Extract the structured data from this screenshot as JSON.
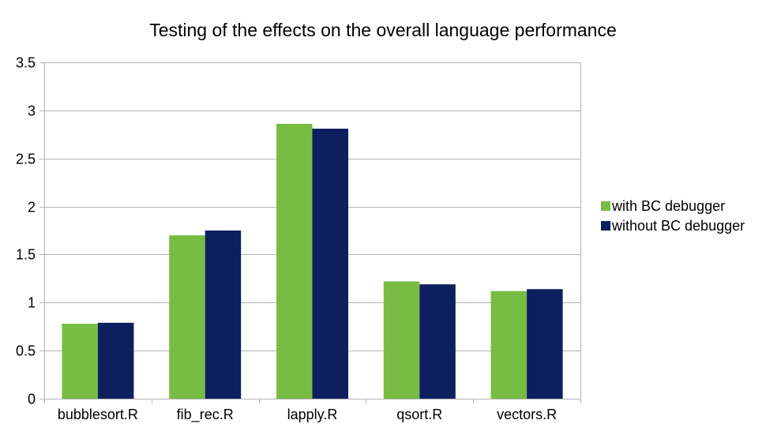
{
  "chart_data": {
    "type": "bar",
    "title": "Testing of the effects on the overall language performance",
    "xlabel": "",
    "ylabel": "",
    "categories": [
      "bubblesort.R",
      "fib_rec.R",
      "lapply.R",
      "qsort.R",
      "vectors.R"
    ],
    "series": [
      {
        "name": "with BC debugger",
        "color": "#77bc43",
        "values": [
          0.78,
          1.7,
          2.86,
          1.22,
          1.12
        ]
      },
      {
        "name": "without BC debugger",
        "color": "#0e1f5f",
        "values": [
          0.79,
          1.75,
          2.81,
          1.19,
          1.14
        ]
      }
    ],
    "ylim": [
      0,
      3.5
    ],
    "yticks": [
      "0",
      "0.5",
      "1",
      "1.5",
      "2",
      "2.5",
      "3",
      "3.5"
    ],
    "grid": true,
    "legend_position": "right"
  }
}
